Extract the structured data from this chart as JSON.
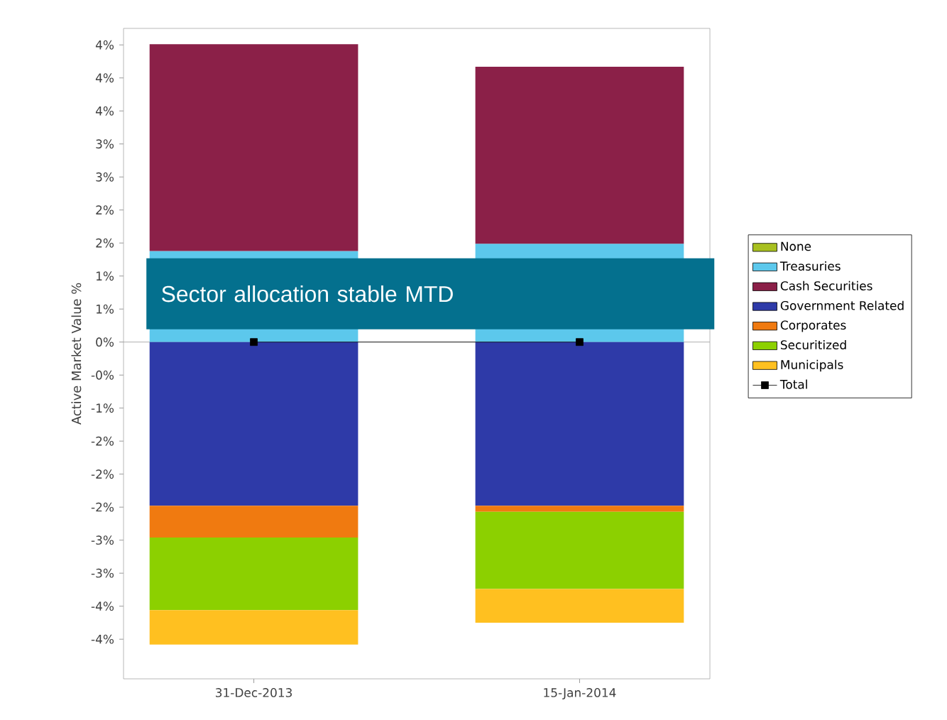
{
  "chart_data": {
    "type": "bar",
    "stacked": true,
    "ylabel": "Active Market Value %",
    "categories": [
      "31-Dec-2013",
      "15-Jan-2014"
    ],
    "series": [
      {
        "name": "Total",
        "type": "line",
        "color": "#000000",
        "marker": "square",
        "values": [
          0,
          0
        ]
      },
      {
        "name": "None",
        "color": "#a8c020",
        "values": [
          0,
          0
        ]
      },
      {
        "name": "Treasuries",
        "color": "#5cc8ec",
        "values": [
          1.38,
          1.49
        ]
      },
      {
        "name": "Cash Securities",
        "color": "#8b2048",
        "values": [
          3.13,
          2.68
        ]
      },
      {
        "name": "Government Related",
        "color": "#2e3aa8",
        "values": [
          -2.48,
          -2.48
        ]
      },
      {
        "name": "Corporates",
        "color": "#f07a10",
        "values": [
          -0.48,
          -0.09
        ]
      },
      {
        "name": "Securitized",
        "color": "#8cd000",
        "values": [
          -1.1,
          -1.17
        ]
      },
      {
        "name": "Municipals",
        "color": "#ffc020",
        "values": [
          -0.52,
          -0.51
        ]
      }
    ],
    "ylim": [
      -5.1,
      4.75
    ],
    "yticks": [
      {
        "value": -4.5,
        "label": "-4%"
      },
      {
        "value": -4,
        "label": "-4%"
      },
      {
        "value": -3.5,
        "label": "-3%"
      },
      {
        "value": -3,
        "label": "-3%"
      },
      {
        "value": -2.5,
        "label": "-2%"
      },
      {
        "value": -2,
        "label": "-2%"
      },
      {
        "value": -1.5,
        "label": "-2%"
      },
      {
        "value": -1,
        "label": "-1%"
      },
      {
        "value": -0.5,
        "label": "-0%"
      },
      {
        "value": 0,
        "label": "0%"
      },
      {
        "value": 0.5,
        "label": "1%"
      },
      {
        "value": 1,
        "label": "1%"
      },
      {
        "value": 1.5,
        "label": "2%"
      },
      {
        "value": 2,
        "label": "2%"
      },
      {
        "value": 2.5,
        "label": "3%"
      },
      {
        "value": 3,
        "label": "3%"
      },
      {
        "value": 3.5,
        "label": "4%"
      },
      {
        "value": 4,
        "label": "4%"
      },
      {
        "value": 4.5,
        "label": "4%"
      }
    ],
    "ref_lines": [
      {
        "axis": "y",
        "value": 0,
        "color": "#999999"
      }
    ],
    "annotations": [
      "Sector allocation stable MTD"
    ],
    "legend": "right"
  }
}
